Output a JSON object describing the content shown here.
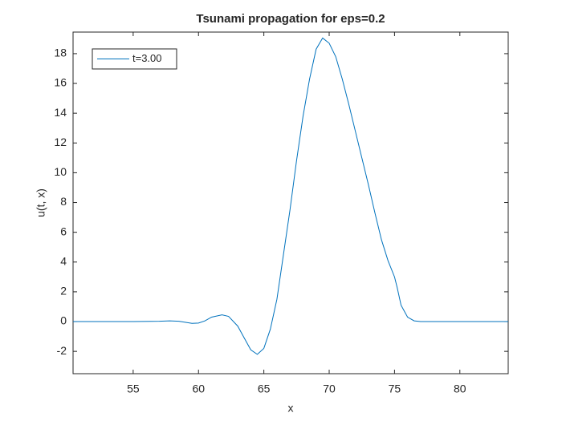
{
  "chart_data": {
    "type": "line",
    "title": "Tsunami propagation for eps=0.2",
    "x_label": "x",
    "y_label": "u(t, x)",
    "x": [
      50.4,
      55,
      57,
      57.8,
      58.5,
      59.5,
      60,
      60.5,
      61,
      61.8,
      62.3,
      63,
      63.5,
      64,
      64.5,
      65,
      65.5,
      66,
      66.5,
      67,
      67.5,
      68,
      68.5,
      69,
      69.5,
      70,
      70.5,
      71,
      71.5,
      72,
      72.5,
      73,
      73.5,
      74,
      74.5,
      75,
      75.2,
      75.5,
      76,
      76.5,
      77,
      83.7
    ],
    "series": [
      {
        "name": "t=3.00",
        "color": "#0072bd",
        "values": [
          0,
          0,
          0.02,
          0.05,
          0.02,
          -0.12,
          -0.1,
          0.05,
          0.3,
          0.45,
          0.35,
          -0.3,
          -1.1,
          -1.9,
          -2.2,
          -1.8,
          -0.5,
          1.5,
          4.5,
          7.5,
          10.8,
          13.8,
          16.3,
          18.3,
          19.05,
          18.7,
          17.8,
          16.3,
          14.6,
          12.8,
          11.0,
          9.2,
          7.3,
          5.5,
          4.1,
          3.0,
          2.3,
          1.1,
          0.3,
          0.05,
          0,
          0
        ]
      }
    ],
    "xlim": [
      50.4,
      83.7
    ],
    "ylim": [
      -3.5,
      19.45
    ],
    "xticks": [
      55,
      60,
      65,
      70,
      75,
      80
    ],
    "yticks": [
      -2,
      0,
      2,
      4,
      6,
      8,
      10,
      12,
      14,
      16,
      18
    ],
    "legend": "upper left",
    "grid": false
  }
}
